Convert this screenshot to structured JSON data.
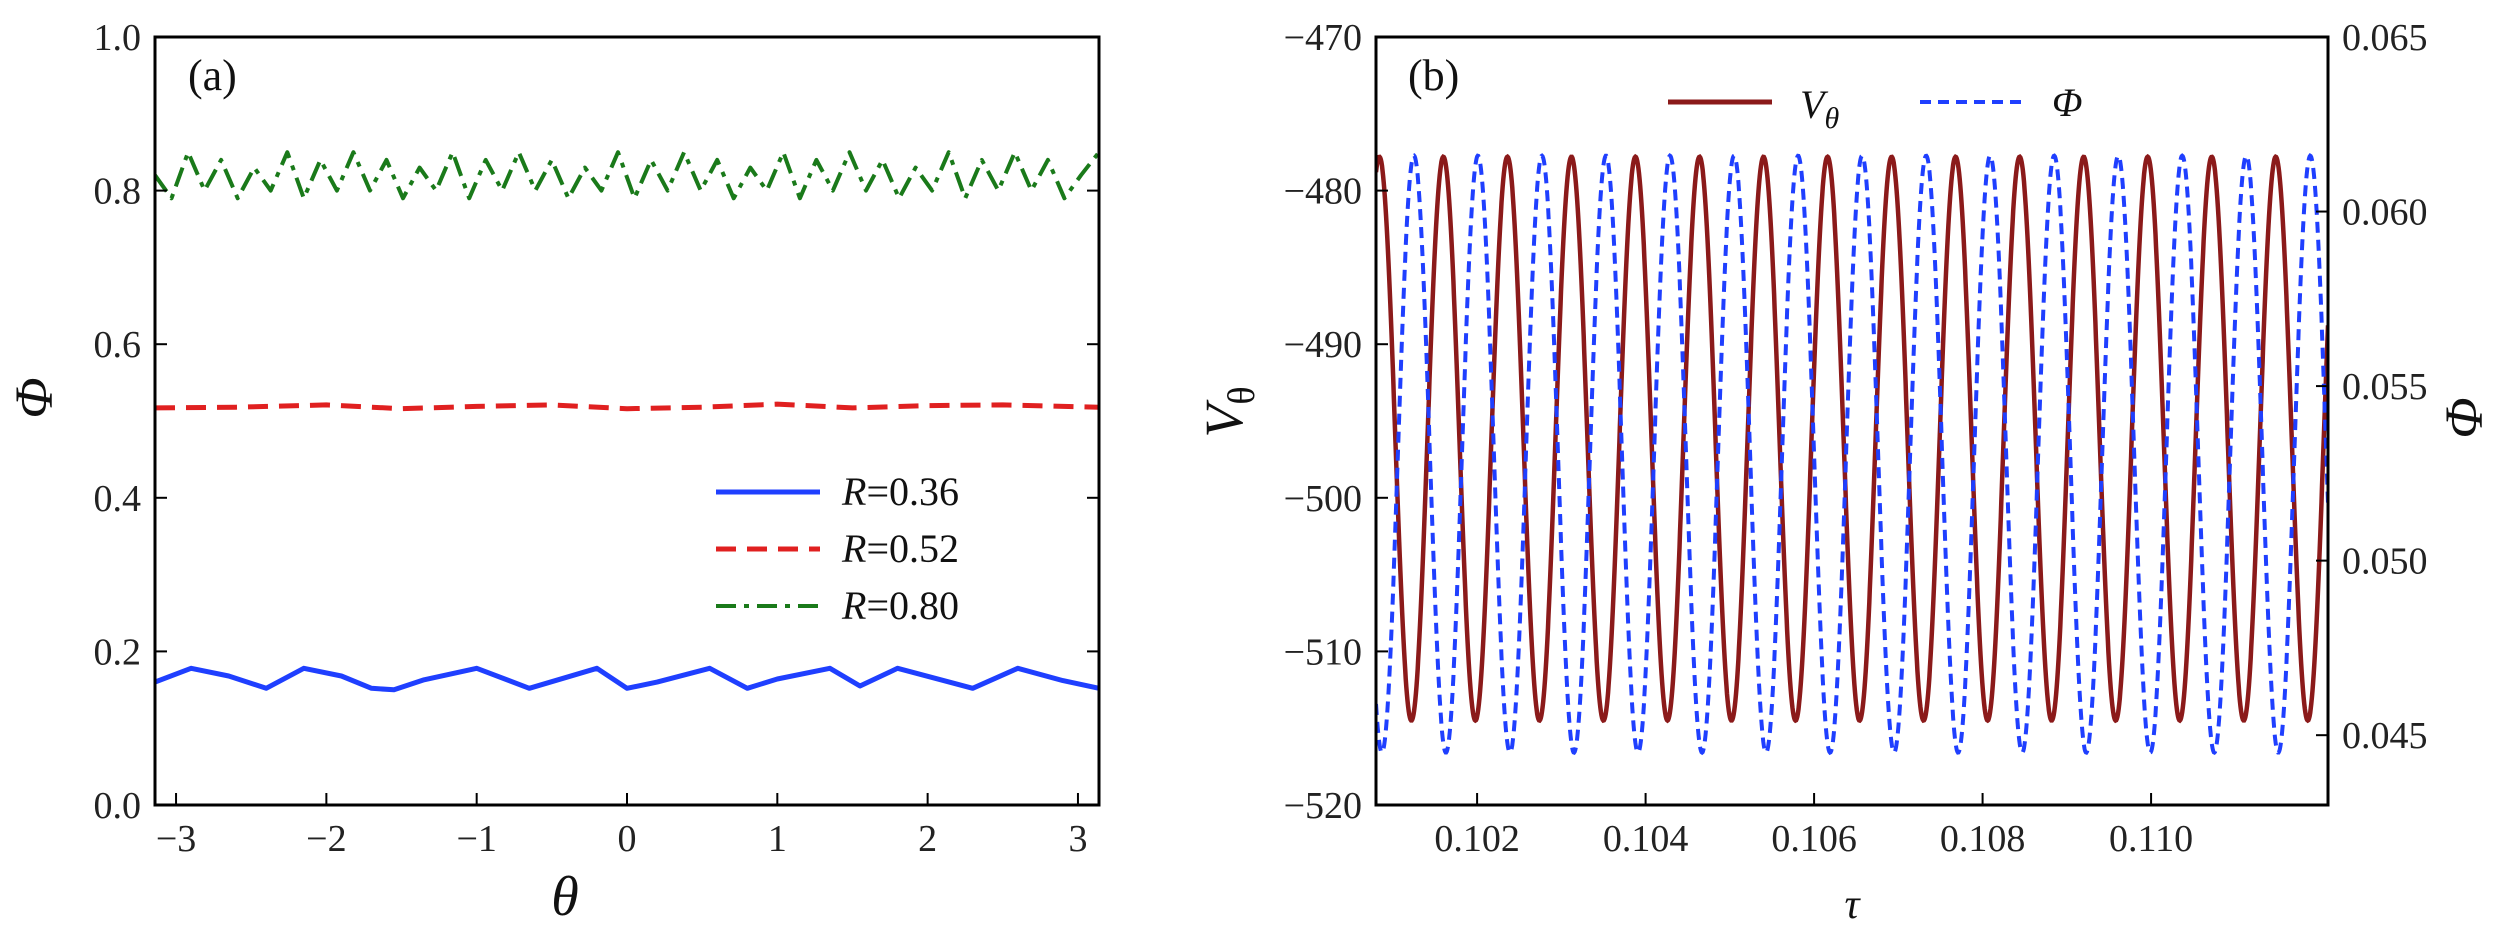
{
  "chart_data": [
    {
      "panel": "(a)",
      "type": "line",
      "xlabel": "θ",
      "ylabel": "Φ",
      "xlim": [
        -3.14,
        3.14
      ],
      "ylim": [
        0.0,
        1.0
      ],
      "xticks": [
        -3,
        -2,
        -1,
        0,
        1,
        2,
        3
      ],
      "xtick_labels": [
        "−3",
        "−2",
        "−1",
        "0",
        "1",
        "2",
        "3"
      ],
      "yticks": [
        0.0,
        0.2,
        0.4,
        0.6,
        0.8,
        1.0
      ],
      "ytick_labels": [
        "0.0",
        "0.2",
        "0.4",
        "0.6",
        "0.8",
        "1.0"
      ],
      "legend_position": "center-right",
      "series": [
        {
          "name": "R=0.36",
          "legend_prefix": "R",
          "legend_value": "=0.36",
          "color": "#1f3fff",
          "dash": "solid",
          "x": [
            -3.14,
            -2.9,
            -2.65,
            -2.4,
            -2.15,
            -1.9,
            -1.7,
            -1.55,
            -1.35,
            -1.0,
            -0.65,
            -0.2,
            0.0,
            0.2,
            0.55,
            0.8,
            1.0,
            1.35,
            1.55,
            1.8,
            2.05,
            2.3,
            2.6,
            2.9,
            3.14
          ],
          "y": [
            0.16,
            0.178,
            0.168,
            0.152,
            0.178,
            0.168,
            0.152,
            0.15,
            0.163,
            0.178,
            0.152,
            0.178,
            0.152,
            0.16,
            0.178,
            0.152,
            0.164,
            0.178,
            0.155,
            0.178,
            0.165,
            0.152,
            0.178,
            0.162,
            0.152
          ]
        },
        {
          "name": "R=0.52",
          "legend_prefix": "R",
          "legend_value": "=0.52",
          "color": "#e02020",
          "dash": "dashed",
          "x": [
            -3.14,
            -2.6,
            -2.0,
            -1.5,
            -1.0,
            -0.5,
            0.0,
            0.5,
            1.0,
            1.5,
            2.0,
            2.5,
            3.14
          ],
          "y": [
            0.517,
            0.518,
            0.521,
            0.516,
            0.519,
            0.521,
            0.516,
            0.518,
            0.522,
            0.517,
            0.52,
            0.521,
            0.518
          ]
        },
        {
          "name": "R=0.80",
          "legend_prefix": "R",
          "legend_value": "=0.80",
          "color": "#1a7a1a",
          "dash": "dash-dot",
          "x": [
            -3.14,
            -3.03,
            -2.92,
            -2.81,
            -2.7,
            -2.59,
            -2.48,
            -2.37,
            -2.26,
            -2.15,
            -2.04,
            -1.93,
            -1.82,
            -1.71,
            -1.6,
            -1.49,
            -1.38,
            -1.27,
            -1.16,
            -1.05,
            -0.94,
            -0.83,
            -0.72,
            -0.61,
            -0.5,
            -0.39,
            -0.28,
            -0.17,
            -0.06,
            0.05,
            0.16,
            0.27,
            0.38,
            0.49,
            0.6,
            0.71,
            0.82,
            0.93,
            1.04,
            1.15,
            1.26,
            1.37,
            1.48,
            1.59,
            1.7,
            1.81,
            1.92,
            2.03,
            2.14,
            2.25,
            2.36,
            2.47,
            2.58,
            2.69,
            2.8,
            2.91,
            3.02,
            3.14
          ],
          "y": [
            0.82,
            0.79,
            0.85,
            0.8,
            0.84,
            0.79,
            0.83,
            0.8,
            0.85,
            0.79,
            0.84,
            0.8,
            0.85,
            0.8,
            0.84,
            0.79,
            0.83,
            0.8,
            0.85,
            0.79,
            0.84,
            0.8,
            0.85,
            0.8,
            0.84,
            0.79,
            0.83,
            0.8,
            0.85,
            0.79,
            0.84,
            0.8,
            0.85,
            0.8,
            0.84,
            0.79,
            0.83,
            0.8,
            0.85,
            0.79,
            0.84,
            0.8,
            0.85,
            0.8,
            0.84,
            0.79,
            0.83,
            0.8,
            0.85,
            0.79,
            0.84,
            0.8,
            0.85,
            0.8,
            0.84,
            0.79,
            0.82,
            0.85
          ]
        }
      ]
    },
    {
      "panel": "(b)",
      "type": "line",
      "xlabel": "τ",
      "ylabel_left_main": "V",
      "ylabel_left_sub": "θ",
      "ylabel_right": "Φ",
      "xlim": [
        0.1008,
        0.1121
      ],
      "ylim_left": [
        -520,
        -470
      ],
      "ylim_right": [
        0.043,
        0.065
      ],
      "xticks": [
        0.102,
        0.104,
        0.106,
        0.108,
        0.11
      ],
      "xtick_labels": [
        "0.102",
        "0.104",
        "0.106",
        "0.108",
        "0.110"
      ],
      "yticks_left": [
        -520,
        -510,
        -500,
        -490,
        -480,
        -470
      ],
      "ytick_labels_left": [
        "−520",
        "−510",
        "−500",
        "−490",
        "−480",
        "−470"
      ],
      "yticks_right": [
        0.045,
        0.05,
        0.055,
        0.06,
        0.065
      ],
      "ytick_labels_right": [
        "0.045",
        "0.050",
        "0.055",
        "0.060",
        "0.065"
      ],
      "legend_position": "top",
      "oscillation_period": 0.00076,
      "series": [
        {
          "name": "V_θ",
          "legend_main": "V",
          "legend_sub": "θ",
          "axis": "left",
          "color": "#8b1a1a",
          "dash": "solid",
          "min": -514.5,
          "max": -477.8,
          "phase": 0.1016
        },
        {
          "name": "Φ",
          "legend_main": "Φ",
          "axis": "right",
          "color": "#1f3fff",
          "dash": "dashed",
          "min": 0.0445,
          "max": 0.0616,
          "phase": 0.10125
        }
      ]
    }
  ]
}
